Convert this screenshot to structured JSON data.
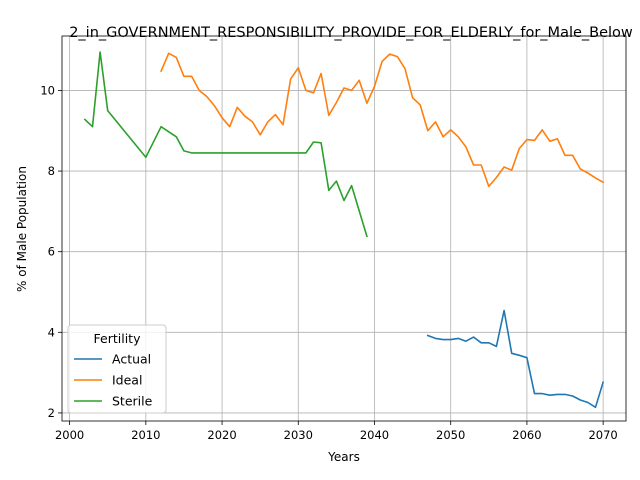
{
  "chart_data": {
    "type": "line",
    "title": "2_in_GOVERNMENT_RESPONSIBILITY_PROVIDE_FOR_ELDERLY_for_Male_Below",
    "xlabel": "Years",
    "ylabel": "% of Male Population",
    "xlim": [
      1999,
      2073
    ],
    "ylim": [
      1.8,
      11.35
    ],
    "xticks": [
      2000,
      2010,
      2020,
      2030,
      2040,
      2050,
      2060,
      2070
    ],
    "yticks": [
      2,
      4,
      6,
      8,
      10
    ],
    "grid": true,
    "legend": {
      "title": "Fertility",
      "placement": "lower-left"
    },
    "series": [
      {
        "name": "Actual",
        "color": "#1f77b4",
        "x": [
          2047,
          2048,
          2049,
          2050,
          2051,
          2052,
          2053,
          2054,
          2055,
          2056,
          2057,
          2058,
          2059,
          2060,
          2061,
          2062,
          2063,
          2064,
          2065,
          2066,
          2067,
          2068,
          2069,
          2070
        ],
        "y": [
          3.92,
          3.85,
          3.82,
          3.82,
          3.85,
          3.78,
          3.88,
          3.74,
          3.74,
          3.65,
          4.54,
          3.48,
          3.43,
          3.37,
          2.48,
          2.48,
          2.44,
          2.46,
          2.46,
          2.42,
          2.32,
          2.26,
          2.14,
          2.76
        ]
      },
      {
        "name": "Ideal",
        "color": "#ff7f0e",
        "x": [
          2012,
          2013,
          2014,
          2015,
          2016,
          2017,
          2018,
          2019,
          2020,
          2021,
          2022,
          2023,
          2024,
          2025,
          2026,
          2027,
          2028,
          2029,
          2030,
          2031,
          2032,
          2033,
          2034,
          2035,
          2036,
          2037,
          2038,
          2039,
          2040,
          2041,
          2042,
          2043,
          2044,
          2045,
          2046,
          2047,
          2048,
          2049,
          2050,
          2051,
          2052,
          2053,
          2054,
          2055,
          2056,
          2057,
          2058,
          2059,
          2060,
          2061,
          2062,
          2063,
          2064,
          2065,
          2066,
          2067,
          2068,
          2069,
          2070
        ],
        "y": [
          10.48,
          10.92,
          10.82,
          10.35,
          10.35,
          10.0,
          9.85,
          9.62,
          9.32,
          9.1,
          9.58,
          9.36,
          9.22,
          8.9,
          9.22,
          9.4,
          9.15,
          10.28,
          10.56,
          10.0,
          9.94,
          10.42,
          9.38,
          9.7,
          10.06,
          10.0,
          10.25,
          9.68,
          10.1,
          10.72,
          10.9,
          10.84,
          10.54,
          9.82,
          9.64,
          9.0,
          9.22,
          8.85,
          9.02,
          8.85,
          8.6,
          8.15,
          8.15,
          7.62,
          7.84,
          8.1,
          8.02,
          8.56,
          8.78,
          8.76,
          9.02,
          8.74,
          8.8,
          8.39,
          8.39,
          8.05,
          7.95,
          7.83,
          7.72
        ]
      },
      {
        "name": "Sterile",
        "color": "#2ca02c",
        "x": [
          2002,
          2003,
          2004,
          2005,
          2010,
          2012,
          2014,
          2015,
          2016,
          2031,
          2032,
          2033,
          2034,
          2035,
          2036,
          2037,
          2039
        ],
        "y": [
          9.28,
          9.1,
          10.95,
          9.5,
          8.34,
          9.1,
          8.85,
          8.5,
          8.45,
          8.45,
          8.72,
          8.7,
          7.52,
          7.75,
          7.27,
          7.64,
          6.38
        ]
      }
    ]
  }
}
